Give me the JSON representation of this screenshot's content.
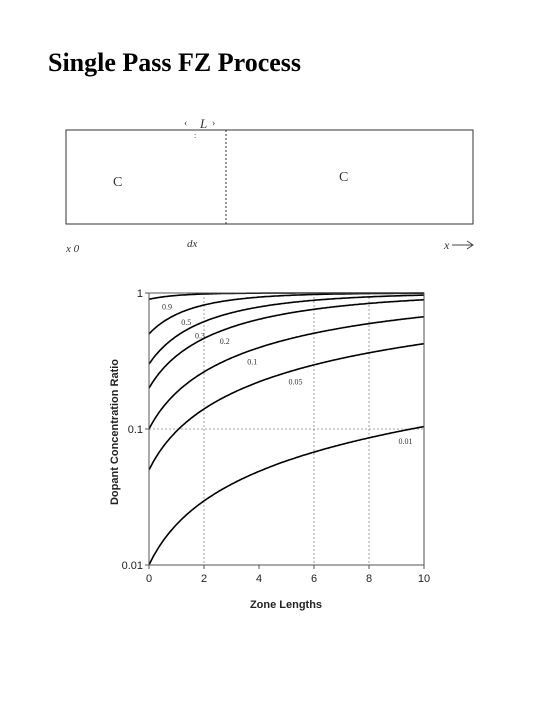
{
  "slide": {
    "title": "Single Pass FZ Process"
  },
  "diagram": {
    "zone_length_label": "L",
    "zone_concentration_label": "C",
    "solid_concentration_label": "C",
    "origin_label": "x 0",
    "increment_label": "dx",
    "x_axis_label": "x"
  },
  "chart_data": {
    "type": "line",
    "title": "",
    "xlabel": "Zone Lengths",
    "ylabel": "Dopant Concentration Ratio",
    "xlim": [
      0,
      10
    ],
    "ylim": [
      0.01,
      1
    ],
    "yscale": "log",
    "grid": "dotted at x=2, 6, 8 and y=0.1",
    "x_ticks": [
      "0",
      "2",
      "4",
      "6",
      "8",
      "10"
    ],
    "y_ticks": [
      "0.01",
      "0.1",
      "1"
    ],
    "x": [
      0,
      0.25,
      0.5,
      1,
      1.5,
      2,
      3,
      4,
      5,
      6,
      7,
      8,
      9,
      10
    ],
    "series": [
      {
        "name": "0.9",
        "k": 0.9
      },
      {
        "name": "0.5",
        "k": 0.5
      },
      {
        "name": "0.3",
        "k": 0.3
      },
      {
        "name": "0.2",
        "k": 0.2
      },
      {
        "name": "0.1",
        "k": 0.1
      },
      {
        "name": "0.05",
        "k": 0.05
      },
      {
        "name": "0.01",
        "k": 0.01
      }
    ],
    "series_label_x": [
      0.4,
      1.1,
      1.6,
      2.5,
      3.5,
      5.0,
      9.0
    ]
  }
}
